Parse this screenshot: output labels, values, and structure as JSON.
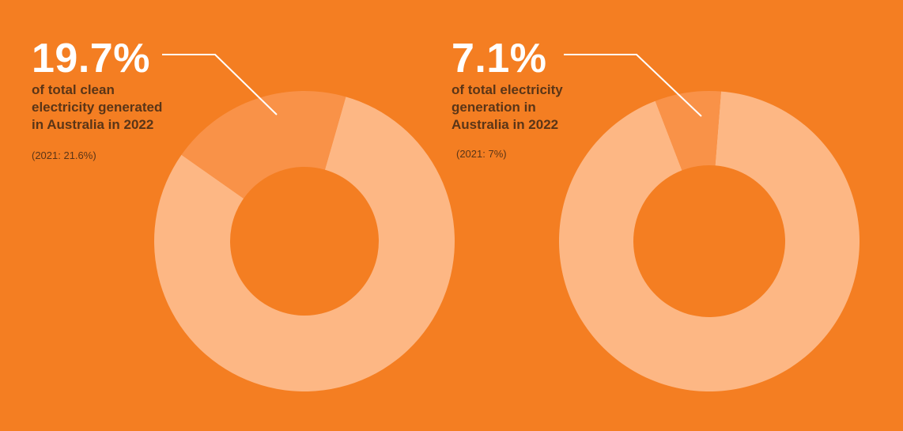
{
  "colors": {
    "background": "#f47e22",
    "segment_highlight": "#f99248",
    "segment_rest": "#fdb784",
    "callout_line": "#ffffff"
  },
  "charts": [
    {
      "headline": "19.7%",
      "description_lines": [
        "of total clean",
        "electricity generated",
        "in Australia in 2022"
      ],
      "note": "(2021: 21.6%)"
    },
    {
      "headline": "7.1%",
      "description_lines": [
        "of total electricity",
        "generation in",
        "Australia in 2022"
      ],
      "note": "(2021: 7%)"
    }
  ],
  "chart_data": [
    {
      "type": "pie",
      "donut": true,
      "values": [
        19.7,
        80.3
      ],
      "highlight_index": 0
    },
    {
      "type": "pie",
      "donut": true,
      "values": [
        7.1,
        92.9
      ],
      "highlight_index": 0
    }
  ]
}
